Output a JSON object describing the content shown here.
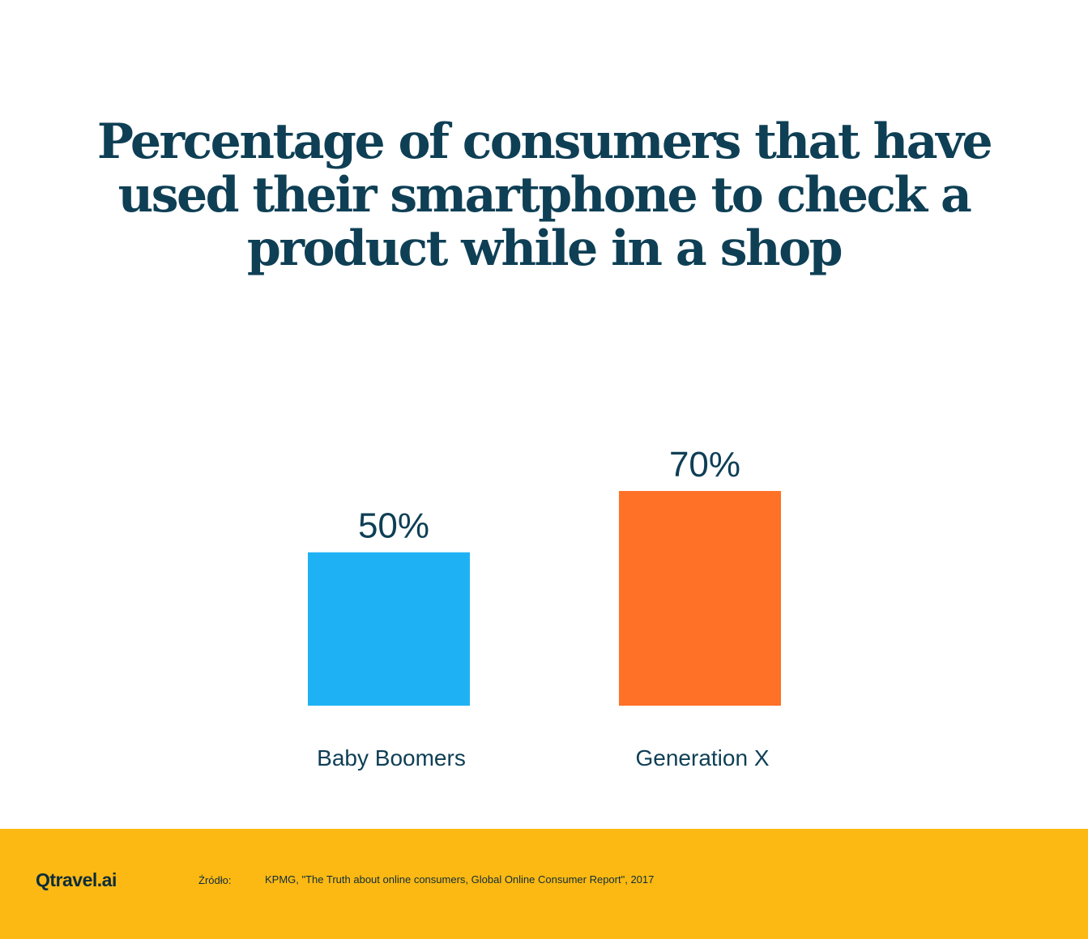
{
  "chart_data": {
    "type": "bar",
    "title": "Percentage of consumers that have used their smartphone to check a product while in a shop",
    "categories": [
      "Baby Boomers",
      "Generation X"
    ],
    "values": [
      50,
      70
    ],
    "value_labels": [
      "50%",
      "70%"
    ],
    "colors": [
      "#1eb2f5",
      "#ff7127"
    ],
    "xlabel": "",
    "ylabel": "",
    "ylim": [
      0,
      100
    ],
    "grid": false,
    "axes_visible": false
  },
  "footer": {
    "background": "#fdb913",
    "logo": "Qtravel.ai",
    "source_label": "Źródło:",
    "source_text": "KPMG, \"The Truth about online consumers, Global Online Consumer Report\", 2017"
  },
  "colors": {
    "text": "#0e3f55",
    "background": "#ffffff"
  }
}
